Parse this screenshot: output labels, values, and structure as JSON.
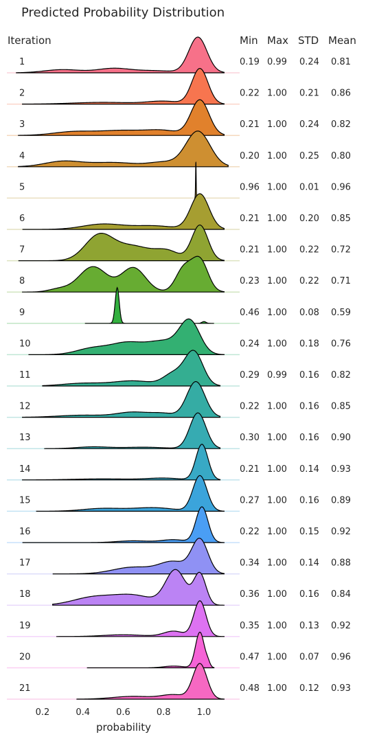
{
  "chart_data": {
    "type": "ridgeline",
    "title": "Predicted Probability Distribution",
    "row_header": "Iteration",
    "stat_headers": [
      "Min",
      "Max",
      "STD",
      "Mean"
    ],
    "xlabel": "probability",
    "x_ticks": [
      "0.2",
      "0.4",
      "0.6",
      "0.8",
      "1.0"
    ],
    "x_tick_values": [
      0.2,
      0.4,
      0.6,
      0.8,
      1.0
    ],
    "xlim": [
      0.05,
      1.18
    ],
    "grid": false,
    "rows": [
      {
        "label": "1",
        "color": "#f77189",
        "stats": [
          "0.19",
          "0.99",
          "0.24",
          "0.81"
        ],
        "range": [
          0.07,
          1.1
        ],
        "peaks": [
          [
            0.97,
            0.045,
            1.0
          ],
          [
            0.3,
            0.09,
            0.09
          ],
          [
            0.55,
            0.08,
            0.12
          ],
          [
            0.75,
            0.1,
            0.06
          ]
        ]
      },
      {
        "label": "2",
        "color": "#f7754f",
        "stats": [
          "0.22",
          "1.00",
          "0.21",
          "0.86"
        ],
        "range": [
          0.1,
          1.1
        ],
        "peaks": [
          [
            0.98,
            0.04,
            1.0
          ],
          [
            0.5,
            0.15,
            0.05
          ],
          [
            0.8,
            0.08,
            0.08
          ]
        ]
      },
      {
        "label": "3",
        "color": "#e1812c",
        "stats": [
          "0.21",
          "1.00",
          "0.24",
          "0.82"
        ],
        "range": [
          0.08,
          1.1
        ],
        "peaks": [
          [
            0.98,
            0.045,
            1.0
          ],
          [
            0.35,
            0.1,
            0.1
          ],
          [
            0.6,
            0.12,
            0.14
          ],
          [
            0.8,
            0.08,
            0.12
          ]
        ]
      },
      {
        "label": "4",
        "color": "#ce8f31",
        "stats": [
          "0.20",
          "1.00",
          "0.25",
          "0.80"
        ],
        "range": [
          0.08,
          1.12
        ],
        "peaks": [
          [
            0.97,
            0.06,
            1.0
          ],
          [
            0.3,
            0.09,
            0.15
          ],
          [
            0.55,
            0.12,
            0.12
          ],
          [
            0.8,
            0.07,
            0.12
          ]
        ]
      },
      {
        "label": "5",
        "color": "#bb9832",
        "stats": [
          "0.96",
          "1.00",
          "0.01",
          "0.96"
        ],
        "range": [
          0.955,
          0.965
        ],
        "peaks": [
          [
            0.96,
            0.0015,
            1.0
          ]
        ]
      },
      {
        "label": "6",
        "color": "#a69e31",
        "stats": [
          "0.21",
          "1.00",
          "0.20",
          "0.85"
        ],
        "range": [
          0.1,
          1.1
        ],
        "peaks": [
          [
            0.98,
            0.045,
            1.0
          ],
          [
            0.5,
            0.1,
            0.15
          ],
          [
            0.75,
            0.1,
            0.1
          ]
        ]
      },
      {
        "label": "7",
        "color": "#8fa432",
        "stats": [
          "0.21",
          "1.00",
          "0.22",
          "0.72"
        ],
        "range": [
          0.08,
          1.1
        ],
        "peaks": [
          [
            0.98,
            0.04,
            1.0
          ],
          [
            0.48,
            0.07,
            0.7
          ],
          [
            0.65,
            0.09,
            0.4
          ],
          [
            0.82,
            0.06,
            0.25
          ]
        ]
      },
      {
        "label": "8",
        "color": "#67ac32",
        "stats": [
          "0.23",
          "1.00",
          "0.22",
          "0.71"
        ],
        "range": [
          0.1,
          1.1
        ],
        "peaks": [
          [
            0.98,
            0.04,
            0.85
          ],
          [
            0.45,
            0.07,
            0.68
          ],
          [
            0.65,
            0.06,
            0.65
          ],
          [
            0.9,
            0.04,
            0.62
          ],
          [
            0.28,
            0.05,
            0.08
          ]
        ]
      },
      {
        "label": "9",
        "color": "#33b03f",
        "stats": [
          "0.46",
          "1.00",
          "0.08",
          "0.59"
        ],
        "range": [
          0.41,
          1.05
        ],
        "peaks": [
          [
            0.57,
            0.01,
            1.0
          ],
          [
            1.0,
            0.01,
            0.05
          ]
        ]
      },
      {
        "label": "10",
        "color": "#33b072",
        "stats": [
          "0.24",
          "1.00",
          "0.18",
          "0.76"
        ],
        "range": [
          0.13,
          1.1
        ],
        "peaks": [
          [
            0.93,
            0.05,
            1.0
          ],
          [
            0.45,
            0.08,
            0.2
          ],
          [
            0.62,
            0.08,
            0.35
          ],
          [
            0.8,
            0.08,
            0.4
          ]
        ]
      },
      {
        "label": "11",
        "color": "#34ae91",
        "stats": [
          "0.29",
          "0.99",
          "0.16",
          "0.82"
        ],
        "range": [
          0.2,
          1.08
        ],
        "peaks": [
          [
            0.95,
            0.045,
            1.0
          ],
          [
            0.4,
            0.1,
            0.08
          ],
          [
            0.65,
            0.1,
            0.15
          ],
          [
            0.85,
            0.05,
            0.35
          ]
        ]
      },
      {
        "label": "12",
        "color": "#35aca4",
        "stats": [
          "0.22",
          "1.00",
          "0.16",
          "0.85"
        ],
        "range": [
          0.1,
          1.08
        ],
        "peaks": [
          [
            0.96,
            0.045,
            1.0
          ],
          [
            0.4,
            0.12,
            0.06
          ],
          [
            0.65,
            0.08,
            0.14
          ],
          [
            0.8,
            0.06,
            0.1
          ]
        ]
      },
      {
        "label": "13",
        "color": "#36abb2",
        "stats": [
          "0.30",
          "1.00",
          "0.16",
          "0.90"
        ],
        "range": [
          0.21,
          1.08
        ],
        "peaks": [
          [
            0.97,
            0.04,
            1.0
          ],
          [
            0.45,
            0.08,
            0.05
          ],
          [
            0.7,
            0.1,
            0.04
          ]
        ]
      },
      {
        "label": "14",
        "color": "#38a9c5",
        "stats": [
          "0.21",
          "1.00",
          "0.14",
          "0.93"
        ],
        "range": [
          0.1,
          1.08
        ],
        "peaks": [
          [
            0.99,
            0.03,
            1.0
          ],
          [
            0.5,
            0.15,
            0.03
          ],
          [
            0.8,
            0.08,
            0.05
          ]
        ]
      },
      {
        "label": "15",
        "color": "#3ba4db",
        "stats": [
          "0.27",
          "1.00",
          "0.16",
          "0.89"
        ],
        "range": [
          0.17,
          1.1
        ],
        "peaks": [
          [
            0.98,
            0.035,
            1.0
          ],
          [
            0.5,
            0.1,
            0.08
          ],
          [
            0.75,
            0.1,
            0.1
          ]
        ]
      },
      {
        "label": "16",
        "color": "#4a9ef4",
        "stats": [
          "0.22",
          "1.00",
          "0.15",
          "0.92"
        ],
        "range": [
          0.1,
          1.1
        ],
        "peaks": [
          [
            0.99,
            0.03,
            1.0
          ],
          [
            0.65,
            0.08,
            0.05
          ],
          [
            0.85,
            0.06,
            0.08
          ]
        ]
      },
      {
        "label": "17",
        "color": "#8f91f4",
        "stats": [
          "0.34",
          "1.00",
          "0.14",
          "0.88"
        ],
        "range": [
          0.25,
          1.1
        ],
        "peaks": [
          [
            0.98,
            0.04,
            1.0
          ],
          [
            0.65,
            0.1,
            0.2
          ],
          [
            0.85,
            0.07,
            0.35
          ]
        ]
      },
      {
        "label": "18",
        "color": "#bb83f4",
        "stats": [
          "0.36",
          "1.00",
          "0.16",
          "0.84"
        ],
        "range": [
          0.25,
          1.1
        ],
        "peaks": [
          [
            0.98,
            0.03,
            0.8
          ],
          [
            0.86,
            0.05,
            0.9
          ],
          [
            0.45,
            0.1,
            0.2
          ],
          [
            0.65,
            0.1,
            0.25
          ]
        ]
      },
      {
        "label": "19",
        "color": "#dd72f2",
        "stats": [
          "0.35",
          "1.00",
          "0.13",
          "0.92"
        ],
        "range": [
          0.27,
          1.1
        ],
        "peaks": [
          [
            0.98,
            0.03,
            1.0
          ],
          [
            0.6,
            0.1,
            0.05
          ],
          [
            0.85,
            0.05,
            0.15
          ]
        ]
      },
      {
        "label": "20",
        "color": "#f563d6",
        "stats": [
          "0.47",
          "1.00",
          "0.07",
          "0.96"
        ],
        "range": [
          0.42,
          1.05
        ],
        "peaks": [
          [
            0.98,
            0.022,
            1.0
          ],
          [
            0.85,
            0.05,
            0.05
          ],
          [
            1.02,
            0.01,
            0.1
          ]
        ]
      },
      {
        "label": "21",
        "color": "#f668c2",
        "stats": [
          "0.48",
          "1.00",
          "0.12",
          "0.93"
        ],
        "range": [
          0.37,
          1.1
        ],
        "peaks": [
          [
            0.98,
            0.035,
            1.0
          ],
          [
            0.65,
            0.1,
            0.08
          ],
          [
            0.85,
            0.06,
            0.12
          ]
        ]
      }
    ]
  }
}
